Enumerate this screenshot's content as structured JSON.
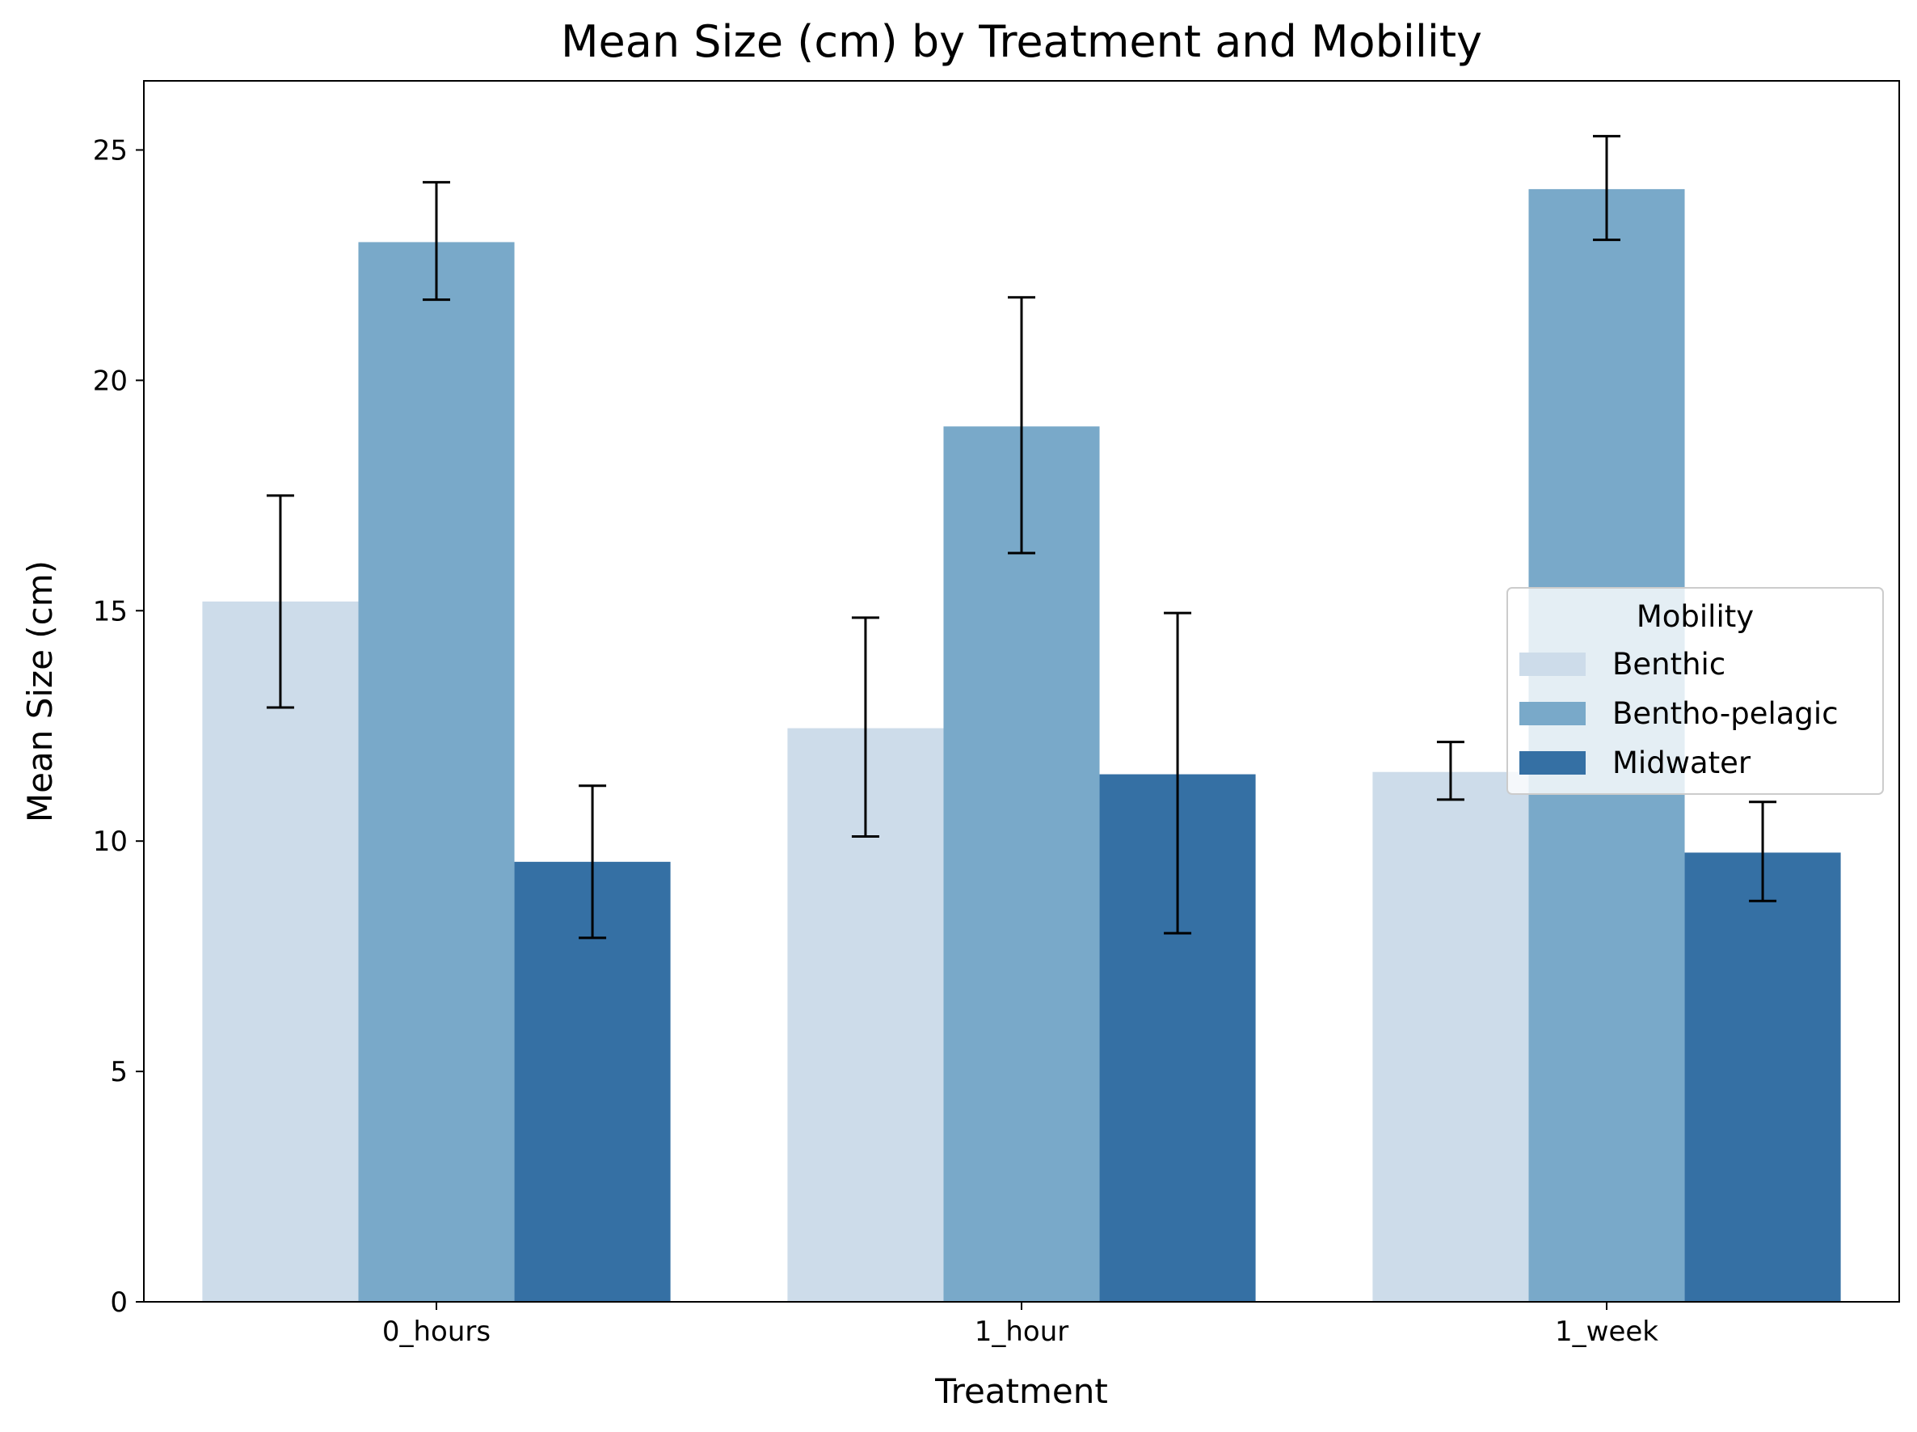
{
  "chart_data": {
    "type": "bar",
    "title": "Mean Size (cm) by Treatment and Mobility",
    "xlabel": "Treatment",
    "ylabel": "Mean Size (cm)",
    "categories": [
      "0_hours",
      "1_hour",
      "1_week"
    ],
    "ylim": [
      0,
      26.5
    ],
    "yticks": [
      0,
      5,
      10,
      15,
      20,
      25
    ],
    "grid": false,
    "legend": {
      "title": "Mobility",
      "placement": "center-right"
    },
    "series": [
      {
        "name": "Benthic",
        "color": "#cddcea",
        "values": [
          15.2,
          12.45,
          11.5
        ],
        "error_low": [
          12.9,
          10.1,
          10.9
        ],
        "error_high": [
          17.5,
          14.85,
          12.15
        ]
      },
      {
        "name": "Bentho-pelagic",
        "color": "#79a9c9",
        "values": [
          23.0,
          19.0,
          24.15
        ],
        "error_low": [
          21.75,
          16.25,
          23.05
        ],
        "error_high": [
          24.3,
          21.8,
          25.3
        ]
      },
      {
        "name": "Midwater",
        "color": "#3570a4",
        "values": [
          9.55,
          11.45,
          9.75
        ],
        "error_low": [
          7.9,
          8.0,
          8.7
        ],
        "error_high": [
          11.2,
          14.95,
          10.85
        ]
      }
    ]
  }
}
